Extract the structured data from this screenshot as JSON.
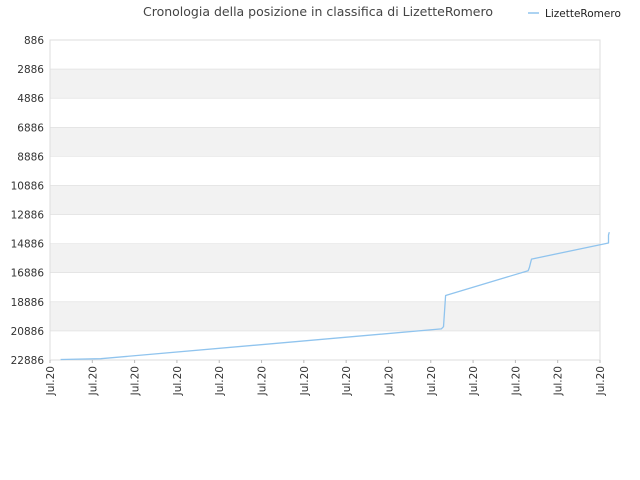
{
  "chart_data": {
    "type": "line",
    "title": "Cronologia della posizione in classifica di LizetteRomero",
    "xlabel": "",
    "ylabel": "",
    "y_reversed": true,
    "ylim": [
      22886,
      886
    ],
    "y_ticks": [
      886,
      2886,
      4886,
      6886,
      8886,
      10886,
      12886,
      14886,
      16886,
      18886,
      20886,
      22886
    ],
    "x_ticks": [
      "Jul.20",
      "Jul.20",
      "Jul.20",
      "Jul.20",
      "Jul.20",
      "Jul.20",
      "Jul.20",
      "Jul.20",
      "Jul.20",
      "Jul.20",
      "Jul.20",
      "Jul.20",
      "Jul.20",
      "Jul.20"
    ],
    "grid": true,
    "grid_style": "alternating horizontal bands",
    "legend_position": "top-right",
    "colors": {
      "series": "#90c4ee",
      "band": "#f2f2f2",
      "grid": "#dddddd"
    },
    "x_range": [
      0,
      13
    ],
    "series": [
      {
        "name": "LizetteRomero",
        "x": [
          0.25,
          1.2,
          9.25,
          9.3,
          9.35,
          11.3,
          11.33,
          11.38,
          13.2,
          13.2,
          13.22
        ],
        "y": [
          22850,
          22800,
          20750,
          20600,
          18450,
          16750,
          16550,
          15950,
          14840,
          14300,
          14100
        ]
      }
    ]
  }
}
